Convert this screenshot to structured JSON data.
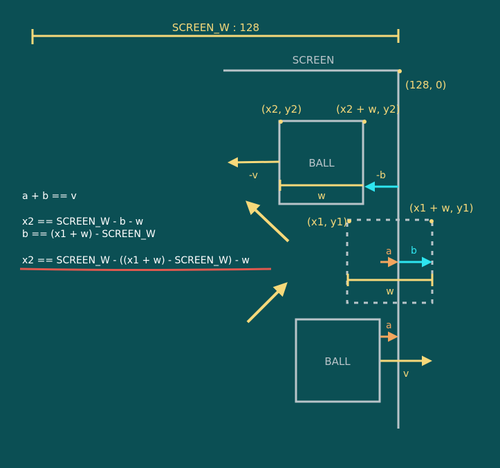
{
  "colors": {
    "background": "#0b4f54",
    "yellow": "#f7d97a",
    "gray": "#b9c4c9",
    "cyan": "#2ee6f0",
    "orange": "#f4a65e",
    "white": "#ffffff",
    "underline": "#e0594f"
  },
  "header": {
    "screen_w_label": "SCREEN_W : 128"
  },
  "screen": {
    "label": "SCREEN",
    "corner_label": "(128, 0)"
  },
  "ball_top": {
    "label": "BALL",
    "corner_tl": "(x2, y2)",
    "corner_tr": "(x2 + w, y2)",
    "neg_v_label": "-v",
    "neg_b_label": "-b",
    "width_label": "w"
  },
  "ghost": {
    "corner_tl": "(x1, y1)",
    "corner_tr": "(x1 + w, y1)",
    "a_label": "a",
    "b_label": "b",
    "width_label": "w"
  },
  "ball_bottom": {
    "label": "BALL",
    "a_label": "a",
    "v_label": "v"
  },
  "equations": {
    "line1": "a + b == v",
    "line2": "x2 == SCREEN_W - b - w",
    "line3": "b == (x1 + w) - SCREEN_W",
    "line4": "x2 == SCREEN_W - ((x1 + w) - SCREEN_W) - w"
  }
}
